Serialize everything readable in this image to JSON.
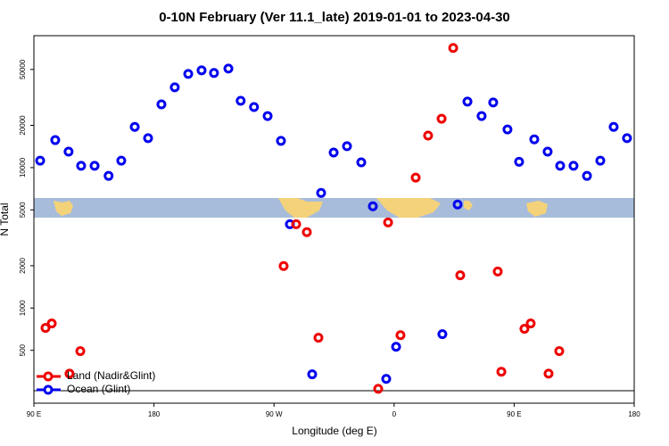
{
  "chart_data": {
    "type": "scatter",
    "title": "0-10N February (Ver 11.1_late)   2019-01-01 to 2023-04-30",
    "x_label": "Longitude (deg E)",
    "y_label": "N Total",
    "xlim": [
      90,
      540
    ],
    "ylim": [
      210,
      87000
    ],
    "ylog": true,
    "legend": "bottom-left",
    "xticks": [
      {
        "value": 90,
        "label": "90 E"
      },
      {
        "value": 180,
        "label": "180"
      },
      {
        "value": 270,
        "label": "90 W"
      },
      {
        "value": 360,
        "label": "0"
      },
      {
        "value": 450,
        "label": "90 E"
      },
      {
        "value": 540,
        "label": "180"
      }
    ],
    "yticks": [
      500,
      1000,
      2000,
      5000,
      10000,
      20000,
      50000
    ],
    "series": [
      {
        "name": "Ocean (Glint)",
        "color": "#0000ee",
        "x": [
          94.7,
          106,
          116,
          125.4,
          135.5,
          146,
          155.5,
          165.6,
          175.6,
          185.6,
          195.6,
          205.7,
          215.7,
          225,
          235.8,
          245,
          255,
          265.2,
          275.2,
          281.9,
          298.6,
          305.3,
          314.7,
          324.7,
          335.4,
          344.1,
          354.1,
          361.5,
          396.2,
          407.6,
          415,
          425.6,
          434.3,
          445,
          453.7,
          465.1,
          475.1,
          484.5,
          494.5,
          504.6,
          514.6,
          524.6,
          534.6
        ],
        "values": [
          11200,
          15700,
          13000,
          10300,
          10300,
          8730,
          11200,
          19500,
          16200,
          28200,
          37300,
          46500,
          49300,
          47200,
          50700,
          29900,
          27000,
          23300,
          15500,
          3950,
          337,
          6600,
          12800,
          14200,
          10900,
          5300,
          313,
          530,
          651,
          5460,
          29500,
          23300,
          29100,
          18700,
          11000,
          15900,
          13000,
          10300,
          10300,
          8730,
          11200,
          19500,
          16200
        ]
      },
      {
        "name": "Land (Nadir&Glint)",
        "color": "#ee0000",
        "x": [
          98.7,
          103.4,
          116.7,
          124.8,
          277.2,
          286.6,
          294.6,
          303.3,
          348.1,
          355.5,
          364.8,
          376.2,
          385.5,
          395.6,
          404.3,
          409.6,
          437.7,
          440.4,
          457.7,
          462.4,
          475.8,
          483.8
        ],
        "values": [
          721,
          776,
          341,
          493,
          1990,
          3950,
          3470,
          614,
          266,
          4070,
          641,
          8480,
          16900,
          22300,
          71100,
          1710,
          1820,
          352,
          711,
          776,
          341,
          493
        ]
      }
    ]
  }
}
